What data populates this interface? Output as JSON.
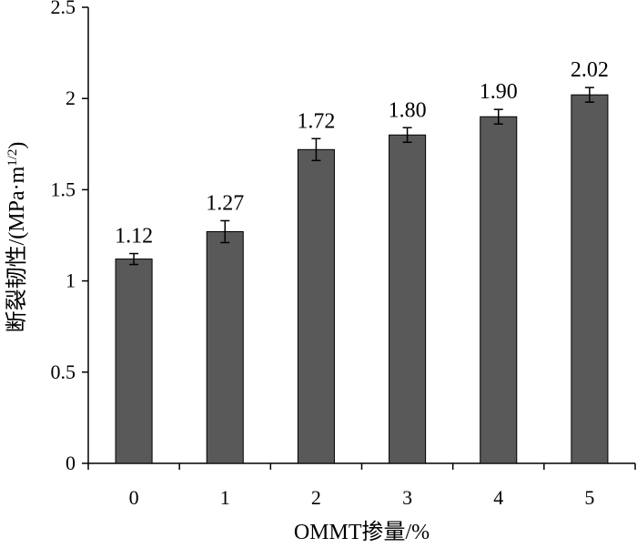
{
  "chart_data": {
    "type": "bar",
    "categories": [
      "0",
      "1",
      "2",
      "3",
      "4",
      "5"
    ],
    "values": [
      1.12,
      1.27,
      1.72,
      1.8,
      1.9,
      2.02
    ],
    "data_labels": [
      "1.12",
      "1.27",
      "1.72",
      "1.80",
      "1.90",
      "2.02"
    ],
    "error": [
      0.03,
      0.06,
      0.06,
      0.04,
      0.04,
      0.04
    ],
    "ylim": [
      0,
      2.5
    ],
    "yticks": [
      0,
      0.5,
      1,
      1.5,
      2,
      2.5
    ],
    "ytick_labels": [
      "0",
      "0.5",
      "1",
      "1.5",
      "2",
      "2.5"
    ],
    "xlabel": "OMMT掺量/%",
    "ylabel": "断裂韧性/(MPa·m",
    "ylabel_sup": "1/2",
    "ylabel_end": ")",
    "grid": false,
    "colors": {
      "bar": "#595959",
      "axis": "#000000"
    }
  }
}
